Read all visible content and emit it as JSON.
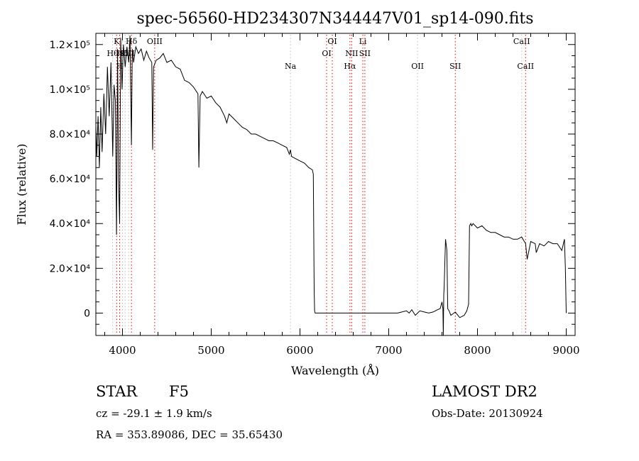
{
  "chart_data": {
    "type": "line",
    "title": "spec-56560-HD234307N344447V01_sp14-090.fits",
    "xlabel": "Wavelength (Å)",
    "ylabel": "Flux (relative)",
    "xlim": [
      3700,
      9100
    ],
    "ylim": [
      -10000,
      125000
    ],
    "grid": false,
    "x_ticks": [
      4000,
      5000,
      6000,
      7000,
      8000,
      9000
    ],
    "x_tick_labels": [
      "4000",
      "5000",
      "6000",
      "7000",
      "8000",
      "9000"
    ],
    "y_ticks": [
      0,
      20000,
      40000,
      60000,
      80000,
      100000,
      120000
    ],
    "y_tick_labels": [
      "0",
      "2.0×10⁴",
      "4.0×10⁴",
      "6.0×10⁴",
      "8.0×10⁴",
      "1.0×10⁵",
      "1.2×10⁵"
    ],
    "series": [
      {
        "x": [
          3700,
          3710,
          3725,
          3740,
          3755,
          3770,
          3790,
          3810,
          3830,
          3850,
          3870,
          3890,
          3905,
          3920,
          3933,
          3945,
          3955,
          3968,
          3980,
          3995,
          4010,
          4030,
          4050,
          4070,
          4085,
          4101,
          4110,
          4125,
          4150,
          4180,
          4210,
          4240,
          4270,
          4300,
          4330,
          4340,
          4350,
          4380,
          4420,
          4460,
          4500,
          4550,
          4600,
          4650,
          4700,
          4750,
          4800,
          4850,
          4861,
          4875,
          4900,
          4950,
          5000,
          5050,
          5100,
          5150,
          5175,
          5200,
          5250,
          5300,
          5350,
          5400,
          5450,
          5500,
          5550,
          5600,
          5650,
          5700,
          5750,
          5800,
          5850,
          5880,
          5893,
          5905,
          5950,
          6000,
          6050,
          6100,
          6140,
          6150,
          6160,
          6165,
          6170,
          6200,
          6300,
          6500,
          6700,
          6900,
          7100,
          7200,
          7230,
          7260,
          7300,
          7350,
          7400,
          7450,
          7500,
          7550,
          7580,
          7600,
          7610,
          7615,
          7620,
          7625,
          7640,
          7655,
          7665,
          7680,
          7700,
          7750,
          7800,
          7850,
          7880,
          7900,
          7910,
          7925,
          7935,
          7950,
          8000,
          8050,
          8100,
          8150,
          8200,
          8250,
          8300,
          8350,
          8400,
          8450,
          8498,
          8542,
          8560,
          8600,
          8650,
          8662,
          8700,
          8750,
          8800,
          8850,
          8900,
          8950,
          8980,
          8990,
          9000
        ],
        "y": [
          84000,
          70000,
          88000,
          65000,
          92000,
          72000,
          98000,
          80000,
          110000,
          88000,
          112000,
          70000,
          102000,
          95000,
          35000,
          118000,
          60000,
          40000,
          123000,
          100000,
          120000,
          110000,
          119000,
          112000,
          124000,
          75000,
          118000,
          112000,
          119000,
          116000,
          118000,
          113000,
          117000,
          114000,
          112000,
          73000,
          110000,
          113000,
          114000,
          116000,
          112000,
          113000,
          110000,
          109000,
          104000,
          103000,
          101000,
          98000,
          65000,
          97000,
          99000,
          96000,
          97000,
          94000,
          92000,
          88000,
          85000,
          89000,
          87000,
          85000,
          83000,
          82000,
          80000,
          80000,
          79000,
          78000,
          77000,
          77000,
          76000,
          75000,
          74000,
          71000,
          73000,
          70000,
          69000,
          68000,
          67000,
          65000,
          64000,
          62000,
          10000,
          1000,
          0,
          0,
          0,
          0,
          0,
          0,
          0,
          1000,
          0,
          1500,
          -1000,
          1000,
          500,
          0,
          500,
          1500,
          2000,
          5000,
          2000,
          -10000,
          8000,
          12000,
          33000,
          28000,
          2000,
          1000,
          -1000,
          500,
          -2000,
          -1000,
          1000,
          4000,
          39000,
          40000,
          39000,
          40000,
          38000,
          39000,
          37000,
          36000,
          36000,
          35000,
          34000,
          34000,
          33000,
          33000,
          34000,
          31000,
          24000,
          32000,
          31000,
          27000,
          31000,
          30000,
          32000,
          31000,
          31000,
          28000,
          33000,
          20000,
          0
        ]
      }
    ],
    "line_labels": [
      {
        "wavelength": 3889,
        "label": "Hθ",
        "row": "upper2",
        "dash_color": "#bbbbbb"
      },
      {
        "wavelength": 3934,
        "label": "K",
        "row": "upper1",
        "dash_color": "#e60000"
      },
      {
        "wavelength": 3968,
        "label": "H",
        "row": "lower",
        "dash_color": "#e60000"
      },
      {
        "wavelength": 4000,
        "label": "Hδ",
        "row": "upper2",
        "dash_color": "#bbbbbb"
      },
      {
        "wavelength": 4030,
        "label": "SII",
        "row": "upper2",
        "dash_color": "#bbbbbb"
      },
      {
        "wavelength": 4069,
        "label": "OII",
        "row": "upper2",
        "dash_color": "#bbbbbb"
      },
      {
        "wavelength": 4101,
        "label": "Hδ",
        "row": "upper1",
        "dash_color": "#e60000"
      },
      {
        "wavelength": 4363,
        "label": "OIII",
        "row": "upper1",
        "dash_color": "#e60000"
      },
      {
        "wavelength": 5893,
        "label": "Na",
        "row": "lower",
        "dash_color": "#bbbbbb"
      },
      {
        "wavelength": 6300,
        "label": "OI",
        "row": "upper2",
        "dash_color": "#e60000"
      },
      {
        "wavelength": 6364,
        "label": "OI",
        "row": "upper1",
        "dash_color": "#e60000"
      },
      {
        "wavelength": 6563,
        "label": "Hα",
        "row": "lower",
        "dash_color": "#e60000"
      },
      {
        "wavelength": 6583,
        "label": "NII",
        "row": "upper2",
        "dash_color": "#e60000"
      },
      {
        "wavelength": 6708,
        "label": "Li",
        "row": "upper1",
        "dash_color": "#e60000"
      },
      {
        "wavelength": 6731,
        "label": "SII",
        "row": "upper2",
        "dash_color": "#e60000"
      },
      {
        "wavelength": 7325,
        "label": "OII",
        "row": "lower",
        "dash_color": "#bbbbbb"
      },
      {
        "wavelength": 7750,
        "label": "SII",
        "row": "lower",
        "dash_color": "#e60000"
      },
      {
        "wavelength": 8498,
        "label": "CaII",
        "row": "upper1",
        "dash_color": "#bbbbbb"
      },
      {
        "wavelength": 8542,
        "label": "CaII",
        "row": "lower",
        "dash_color": "#e60000"
      }
    ]
  },
  "meta": {
    "object_class": "STAR",
    "subclass": "F5",
    "survey": "LAMOST DR2",
    "redshift_line": "cz = -29.1 ± 1.9 km/s",
    "obs_date": "Obs-Date: 20130924",
    "coords": "RA = 353.89086, DEC =  35.65430"
  }
}
